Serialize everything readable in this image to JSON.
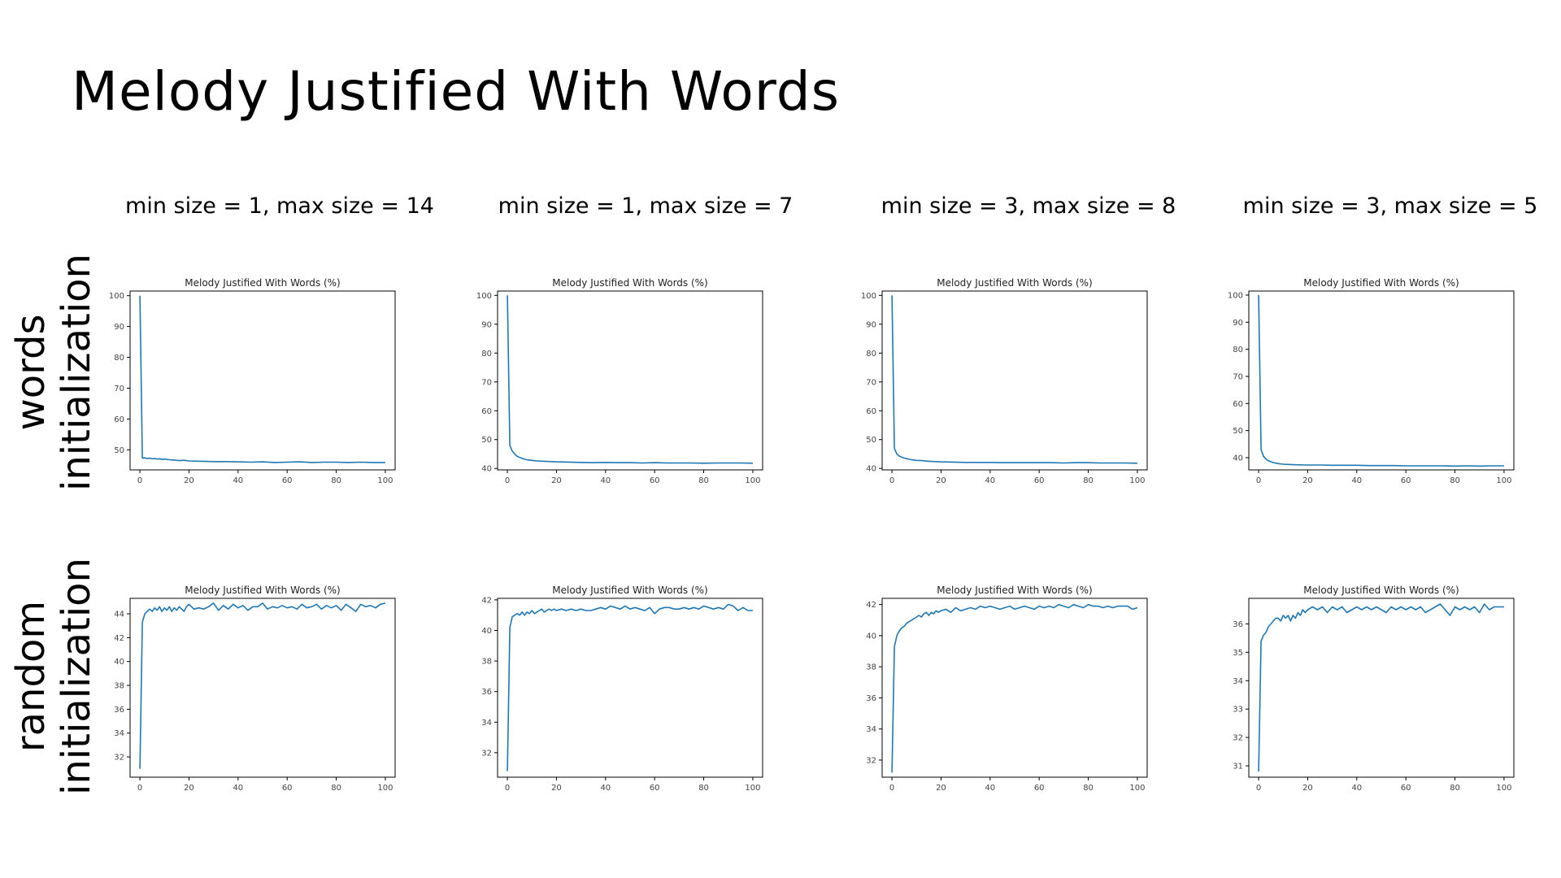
{
  "page": {
    "title": "Melody Justified With Words",
    "columns": [
      "min size = 1, max size = 14",
      "min size = 1, max size = 7",
      "min size = 3, max size = 8",
      "min size = 3, max size = 5"
    ],
    "rows": [
      "words initialization",
      "random initialization"
    ],
    "row_lines": [
      [
        "words",
        "initialization"
      ],
      [
        "random",
        "initialization"
      ]
    ]
  },
  "colors": {
    "line": "#1f77b4",
    "axis": "#000000",
    "tick_label": "#444444"
  },
  "chart_data": [
    {
      "type": "line",
      "title": "Melody Justified With Words (%)",
      "x": [
        0,
        1,
        2,
        3,
        4,
        5,
        6,
        7,
        8,
        9,
        10,
        12,
        14,
        16,
        18,
        20,
        25,
        30,
        35,
        40,
        45,
        50,
        55,
        60,
        65,
        70,
        75,
        80,
        85,
        90,
        95,
        100
      ],
      "y": [
        100,
        47.3,
        47.4,
        47.2,
        47.3,
        47.1,
        47.2,
        47.0,
        47.1,
        46.9,
        47.0,
        46.8,
        46.7,
        46.5,
        46.6,
        46.4,
        46.3,
        46.2,
        46.2,
        46.1,
        46.0,
        46.1,
        45.9,
        46.0,
        46.1,
        45.9,
        46.0,
        46.0,
        45.9,
        46.0,
        45.9,
        45.9
      ],
      "xlim": [
        -4,
        104
      ],
      "ylim": [
        43.5,
        101.5
      ],
      "xticks": [
        0,
        20,
        40,
        60,
        80,
        100
      ],
      "yticks": [
        50,
        60,
        70,
        80,
        90,
        100
      ]
    },
    {
      "type": "line",
      "title": "Melody Justified With Words (%)",
      "x": [
        0,
        1,
        2,
        3,
        4,
        5,
        6,
        7,
        8,
        10,
        12,
        15,
        20,
        25,
        30,
        35,
        40,
        45,
        50,
        55,
        60,
        65,
        70,
        75,
        80,
        85,
        90,
        95,
        100
      ],
      "y": [
        100,
        48,
        46,
        45,
        44.2,
        43.8,
        43.5,
        43.2,
        43.0,
        42.8,
        42.6,
        42.5,
        42.3,
        42.2,
        42.1,
        42.0,
        42.1,
        42.0,
        42.0,
        41.9,
        42.0,
        41.9,
        41.9,
        41.9,
        41.8,
        41.9,
        41.9,
        41.9,
        41.8
      ],
      "xlim": [
        -4,
        104
      ],
      "ylim": [
        39.5,
        101.5
      ],
      "xticks": [
        0,
        20,
        40,
        60,
        80,
        100
      ],
      "yticks": [
        40,
        50,
        60,
        70,
        80,
        90,
        100
      ]
    },
    {
      "type": "line",
      "title": "Melody Justified With Words (%)",
      "x": [
        0,
        1,
        2,
        3,
        4,
        5,
        6,
        7,
        8,
        10,
        12,
        15,
        20,
        25,
        30,
        35,
        40,
        45,
        50,
        55,
        60,
        65,
        70,
        75,
        80,
        85,
        90,
        95,
        100
      ],
      "y": [
        100,
        47,
        45,
        44.3,
        43.9,
        43.6,
        43.4,
        43.2,
        43.0,
        42.8,
        42.7,
        42.5,
        42.3,
        42.2,
        42.1,
        42.1,
        42.1,
        42.0,
        42.0,
        42.0,
        42.0,
        42.0,
        41.9,
        42.0,
        42.0,
        41.9,
        41.9,
        41.9,
        41.8
      ],
      "xlim": [
        -4,
        104
      ],
      "ylim": [
        39.5,
        101.5
      ],
      "xticks": [
        0,
        20,
        40,
        60,
        80,
        100
      ],
      "yticks": [
        40,
        50,
        60,
        70,
        80,
        90,
        100
      ]
    },
    {
      "type": "line",
      "title": "Melody Justified With Words (%)",
      "x": [
        0,
        1,
        2,
        3,
        4,
        5,
        6,
        7,
        8,
        10,
        12,
        15,
        20,
        25,
        30,
        35,
        40,
        45,
        50,
        55,
        60,
        65,
        70,
        75,
        80,
        85,
        90,
        95,
        100
      ],
      "y": [
        100,
        43,
        40.5,
        39.5,
        38.9,
        38.5,
        38.2,
        38.0,
        37.8,
        37.6,
        37.5,
        37.4,
        37.3,
        37.3,
        37.2,
        37.2,
        37.2,
        37.1,
        37.1,
        37.1,
        37.0,
        37.0,
        37.0,
        37.0,
        36.9,
        37.0,
        36.9,
        37.0,
        37.0
      ],
      "xlim": [
        -4,
        104
      ],
      "ylim": [
        35.5,
        101.5
      ],
      "xticks": [
        0,
        20,
        40,
        60,
        80,
        100
      ],
      "yticks": [
        40,
        50,
        60,
        70,
        80,
        90,
        100
      ]
    },
    {
      "type": "line",
      "title": "Melody Justified With Words (%)",
      "x": [
        0,
        1,
        2,
        3,
        4,
        5,
        6,
        7,
        8,
        9,
        10,
        11,
        12,
        13,
        14,
        15,
        16,
        17,
        18,
        19,
        20,
        22,
        24,
        26,
        28,
        30,
        32,
        34,
        36,
        38,
        40,
        42,
        44,
        46,
        48,
        50,
        52,
        54,
        56,
        58,
        60,
        62,
        64,
        66,
        68,
        70,
        72,
        74,
        76,
        78,
        80,
        82,
        84,
        86,
        88,
        90,
        92,
        94,
        96,
        98,
        100
      ],
      "y": [
        31,
        43.3,
        44.0,
        44.2,
        44.4,
        44.2,
        44.5,
        44.3,
        44.6,
        44.2,
        44.5,
        44.3,
        44.6,
        44.2,
        44.5,
        44.3,
        44.6,
        44.4,
        44.2,
        44.6,
        44.8,
        44.4,
        44.5,
        44.4,
        44.6,
        44.9,
        44.3,
        44.7,
        44.4,
        44.8,
        44.5,
        44.7,
        44.3,
        44.6,
        44.6,
        44.9,
        44.4,
        44.6,
        44.5,
        44.7,
        44.5,
        44.6,
        44.4,
        44.8,
        44.5,
        44.6,
        44.8,
        44.4,
        44.7,
        44.5,
        44.7,
        44.3,
        44.8,
        44.5,
        44.2,
        44.8,
        44.6,
        44.7,
        44.5,
        44.8,
        44.9
      ],
      "xlim": [
        -4,
        104
      ],
      "ylim": [
        30.3,
        45.3
      ],
      "xticks": [
        0,
        20,
        40,
        60,
        80,
        100
      ],
      "yticks": [
        32,
        34,
        36,
        38,
        40,
        42,
        44
      ]
    },
    {
      "type": "line",
      "title": "Melody Justified With Words (%)",
      "x": [
        0,
        1,
        2,
        3,
        4,
        5,
        6,
        7,
        8,
        9,
        10,
        11,
        12,
        13,
        14,
        15,
        16,
        17,
        18,
        19,
        20,
        22,
        24,
        26,
        28,
        30,
        32,
        34,
        36,
        38,
        40,
        42,
        44,
        46,
        48,
        50,
        52,
        54,
        56,
        58,
        60,
        62,
        64,
        66,
        68,
        70,
        72,
        74,
        76,
        78,
        80,
        82,
        84,
        86,
        88,
        90,
        92,
        94,
        96,
        98,
        100
      ],
      "y": [
        30.8,
        40.2,
        40.9,
        41.0,
        41.1,
        41.0,
        41.2,
        41.0,
        41.2,
        41.1,
        41.3,
        41.1,
        41.2,
        41.3,
        41.4,
        41.2,
        41.3,
        41.4,
        41.3,
        41.4,
        41.3,
        41.4,
        41.3,
        41.4,
        41.3,
        41.4,
        41.3,
        41.3,
        41.4,
        41.5,
        41.4,
        41.6,
        41.5,
        41.4,
        41.6,
        41.4,
        41.5,
        41.4,
        41.3,
        41.5,
        41.1,
        41.4,
        41.5,
        41.5,
        41.4,
        41.4,
        41.5,
        41.4,
        41.5,
        41.4,
        41.6,
        41.5,
        41.4,
        41.5,
        41.4,
        41.7,
        41.6,
        41.3,
        41.5,
        41.3,
        41.3
      ],
      "xlim": [
        -4,
        104
      ],
      "ylim": [
        30.4,
        42.1
      ],
      "xticks": [
        0,
        20,
        40,
        60,
        80,
        100
      ],
      "yticks": [
        32,
        34,
        36,
        38,
        40,
        42
      ]
    },
    {
      "type": "line",
      "title": "Melody Justified With Words (%)",
      "x": [
        0,
        1,
        2,
        3,
        4,
        5,
        6,
        7,
        8,
        9,
        10,
        11,
        12,
        13,
        14,
        15,
        16,
        17,
        18,
        19,
        20,
        22,
        24,
        26,
        28,
        30,
        32,
        34,
        36,
        38,
        40,
        42,
        44,
        46,
        48,
        50,
        52,
        54,
        56,
        58,
        60,
        62,
        64,
        66,
        68,
        70,
        72,
        74,
        76,
        78,
        80,
        82,
        84,
        86,
        88,
        90,
        92,
        94,
        96,
        98,
        100
      ],
      "y": [
        31.2,
        39.3,
        40.0,
        40.3,
        40.5,
        40.6,
        40.8,
        40.9,
        41.0,
        41.1,
        41.2,
        41.3,
        41.2,
        41.4,
        41.5,
        41.3,
        41.5,
        41.4,
        41.6,
        41.5,
        41.6,
        41.7,
        41.5,
        41.8,
        41.6,
        41.7,
        41.8,
        41.7,
        41.9,
        41.8,
        41.9,
        41.8,
        41.7,
        41.8,
        41.9,
        41.7,
        41.8,
        41.9,
        41.8,
        41.7,
        41.9,
        41.8,
        41.9,
        41.8,
        42.0,
        41.9,
        41.8,
        42.0,
        41.9,
        41.8,
        42.0,
        41.9,
        41.9,
        41.8,
        41.9,
        41.8,
        41.9,
        41.9,
        41.9,
        41.7,
        41.8
      ],
      "xlim": [
        -4,
        104
      ],
      "ylim": [
        30.9,
        42.4
      ],
      "xticks": [
        0,
        20,
        40,
        60,
        80,
        100
      ],
      "yticks": [
        32,
        34,
        36,
        38,
        40,
        42
      ]
    },
    {
      "type": "line",
      "title": "Melody Justified With Words (%)",
      "x": [
        0,
        1,
        2,
        3,
        4,
        5,
        6,
        7,
        8,
        9,
        10,
        11,
        12,
        13,
        14,
        15,
        16,
        17,
        18,
        19,
        20,
        22,
        24,
        26,
        28,
        30,
        32,
        34,
        36,
        38,
        40,
        42,
        44,
        46,
        48,
        50,
        52,
        54,
        56,
        58,
        60,
        62,
        64,
        66,
        68,
        70,
        72,
        74,
        76,
        78,
        80,
        82,
        84,
        86,
        88,
        90,
        92,
        94,
        96,
        98,
        100
      ],
      "y": [
        30.8,
        35.4,
        35.6,
        35.7,
        35.9,
        36.0,
        36.1,
        36.2,
        36.2,
        36.1,
        36.3,
        36.2,
        36.3,
        36.1,
        36.3,
        36.2,
        36.4,
        36.3,
        36.5,
        36.4,
        36.5,
        36.6,
        36.5,
        36.6,
        36.4,
        36.6,
        36.5,
        36.6,
        36.4,
        36.5,
        36.6,
        36.5,
        36.6,
        36.5,
        36.6,
        36.5,
        36.4,
        36.6,
        36.5,
        36.6,
        36.5,
        36.6,
        36.5,
        36.6,
        36.4,
        36.5,
        36.6,
        36.7,
        36.5,
        36.3,
        36.6,
        36.5,
        36.6,
        36.5,
        36.6,
        36.4,
        36.7,
        36.5,
        36.6,
        36.6,
        36.6
      ],
      "xlim": [
        -4,
        104
      ],
      "ylim": [
        30.6,
        36.9
      ],
      "xticks": [
        0,
        20,
        40,
        60,
        80,
        100
      ],
      "yticks": [
        31,
        32,
        33,
        34,
        35,
        36
      ]
    }
  ]
}
